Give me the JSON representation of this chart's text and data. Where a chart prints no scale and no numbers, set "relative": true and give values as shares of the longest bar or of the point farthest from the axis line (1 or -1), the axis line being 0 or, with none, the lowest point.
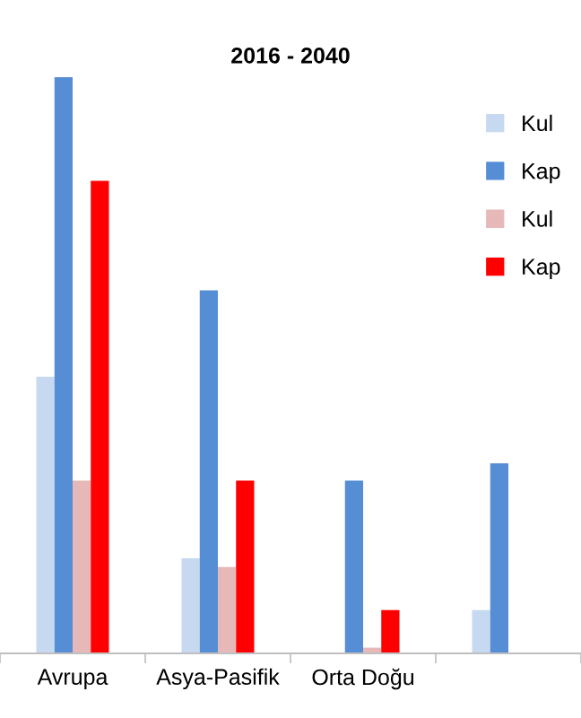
{
  "chart_data": {
    "type": "bar",
    "title": "2016 - 2040",
    "relative": true,
    "categories": [
      "Avrupa",
      "Asya-Pasifik",
      "Orta Doğu",
      null
    ],
    "series": [
      {
        "name": "Kul",
        "color": "#c6d9f1",
        "values": [
          0.48,
          0.165,
          0,
          0.075
        ]
      },
      {
        "name": "Kap",
        "color": "#558ed5",
        "values": [
          1,
          0.63,
          0.3,
          0.33
        ]
      },
      {
        "name": "Kul",
        "color": "#e6b9b8",
        "values": [
          0.3,
          0.15,
          0.01,
          null
        ]
      },
      {
        "name": "Kap",
        "color": "#ff0000",
        "values": [
          0.82,
          0.3,
          0.075,
          null
        ]
      }
    ],
    "legend": "right",
    "grid": false
  }
}
